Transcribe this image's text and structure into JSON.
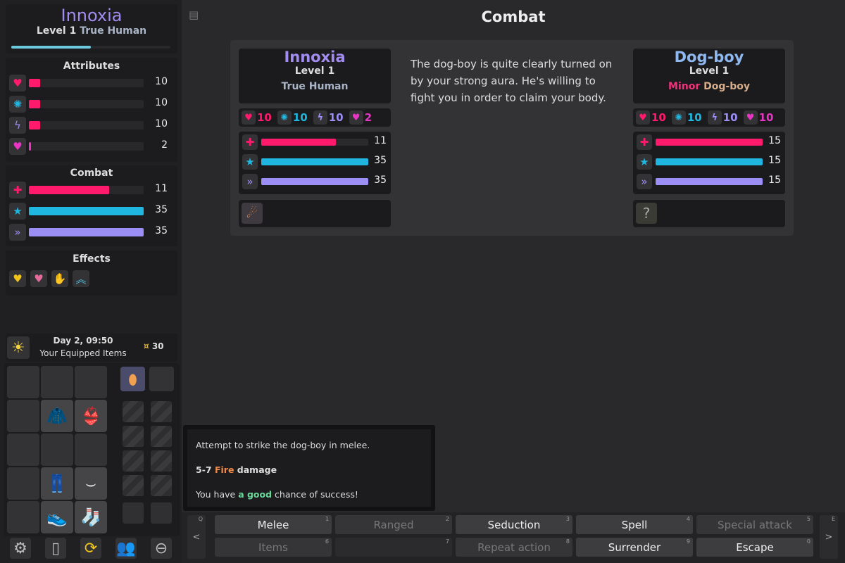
{
  "player": {
    "name": "Innoxia",
    "level": "Level 1",
    "race": "True Human",
    "xp_fraction": 0.5
  },
  "attributes": {
    "heading": "Attributes",
    "items": [
      {
        "icon": "heart-icon",
        "glyph": "♥",
        "color": "#ff1a6c",
        "value": "10",
        "fill": 0.1
      },
      {
        "icon": "brain-icon",
        "glyph": "✺",
        "color": "#1fb7e0",
        "value": "10",
        "fill": 0.1
      },
      {
        "icon": "lightning-icon",
        "glyph": "ϟ",
        "color": "#9b8ef5",
        "value": "10",
        "fill": 0.1
      },
      {
        "icon": "demon-heart-icon",
        "glyph": "♥",
        "color": "#e835c4",
        "value": "2",
        "fill": 0.02
      }
    ]
  },
  "combat_stats": {
    "heading": "Combat",
    "items": [
      {
        "icon": "health-icon",
        "glyph": "✚",
        "color": "#ff1a6c",
        "value": "11",
        "fill": 0.7
      },
      {
        "icon": "aura-star-icon",
        "glyph": "★",
        "color": "#1fb7e0",
        "value": "35",
        "fill": 1
      },
      {
        "icon": "energy-icon",
        "glyph": "»",
        "color": "#9b8ef5",
        "value": "35",
        "fill": 1
      }
    ]
  },
  "effects": {
    "heading": "Effects",
    "items": [
      {
        "icon": "golden-heart-halo-icon",
        "glyph": "♥",
        "color": "#f0c419"
      },
      {
        "icon": "pink-heart-icon",
        "glyph": "♥",
        "color": "#e56b9a"
      },
      {
        "icon": "hand-icon",
        "glyph": "✋",
        "color": "#ddd"
      },
      {
        "icon": "double-chevron-up-icon",
        "glyph": "︽",
        "color": "#4ec3e0"
      }
    ]
  },
  "status": {
    "time": "Day 2, 09:50",
    "subtitle": "Your Equipped Items",
    "money": "30",
    "money_icon": "¤"
  },
  "page_title": "Combat",
  "combat": {
    "player": {
      "name": "Innoxia",
      "level": "Level 1",
      "race": "True Human",
      "stats": [
        "10",
        "10",
        "10",
        "2"
      ],
      "bars": [
        {
          "value": "11",
          "fill": 0.7
        },
        {
          "value": "35",
          "fill": 1
        },
        {
          "value": "35",
          "fill": 1
        }
      ]
    },
    "enemy": {
      "name": "Dog-boy",
      "level": "Level 1",
      "race_prefix": "Minor",
      "race": "Dog-boy",
      "stats": [
        "10",
        "10",
        "10",
        "10"
      ],
      "bars": [
        {
          "value": "15",
          "fill": 1
        },
        {
          "value": "15",
          "fill": 1
        },
        {
          "value": "15",
          "fill": 1
        }
      ],
      "unknown": "?"
    },
    "description": "The dog-boy is quite clearly turned on by your strong aura. He's willing to fight you in order to claim your body."
  },
  "tooltip": {
    "line1": "Attempt to strike the dog-boy in melee.",
    "damage_range": "5-7",
    "damage_type": "Fire",
    "damage_suffix": "damage",
    "chance_prefix": "You have",
    "chance": "a good",
    "chance_suffix": "chance of success!"
  },
  "actions": {
    "prev": "<",
    "next": ">",
    "prev_key": "Q",
    "next_key": "E",
    "buttons": [
      {
        "label": "Melee",
        "key": "1",
        "state": "enabled"
      },
      {
        "label": "Ranged",
        "key": "2",
        "state": "disabled"
      },
      {
        "label": "Seduction",
        "key": "3",
        "state": "enabled"
      },
      {
        "label": "Spell",
        "key": "4",
        "state": "enabled"
      },
      {
        "label": "Special attack",
        "key": "5",
        "state": "disabled"
      },
      {
        "label": "Items",
        "key": "6",
        "state": "disabled"
      },
      {
        "label": "",
        "key": "7",
        "state": "empty"
      },
      {
        "label": "Repeat action",
        "key": "8",
        "state": "disabled"
      },
      {
        "label": "Surrender",
        "key": "9",
        "state": "enabled"
      },
      {
        "label": "Escape",
        "key": "0",
        "state": "enabled"
      }
    ]
  },
  "colors": {
    "health": "#ff1a6c",
    "aura": "#1fb7e0",
    "energy": "#9b8ef5",
    "arcane": "#e835c4",
    "name": "#a38cf0",
    "enemy_name": "#8fb8f0",
    "fire": "#f08a4b",
    "good": "#6bd69a"
  }
}
